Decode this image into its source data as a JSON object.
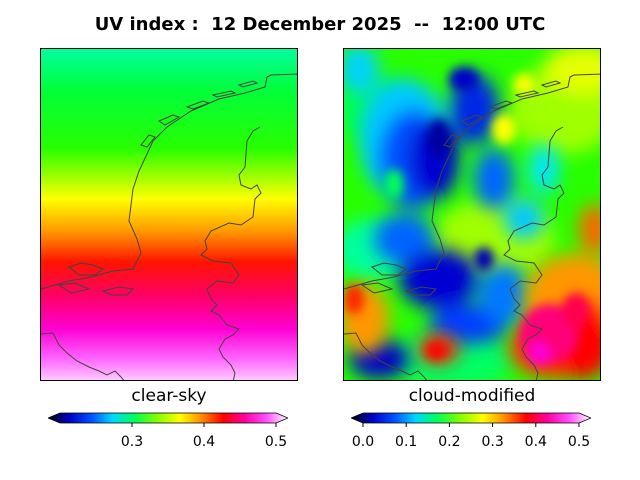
{
  "title": "UV index :  12 December 2025  --  12:00 UTC",
  "panels": {
    "left": {
      "label": "clear-sky",
      "colorbar": {
        "ticks": [
          "0.3",
          "0.4",
          "0.5"
        ],
        "tick_values": [
          0.3,
          0.4,
          0.5
        ],
        "range": [
          0.2,
          0.5
        ]
      }
    },
    "right": {
      "label": "cloud-modified",
      "colorbar": {
        "ticks": [
          "0.0",
          "0.1",
          "0.2",
          "0.3",
          "0.4",
          "0.5"
        ],
        "tick_values": [
          0.0,
          0.1,
          0.2,
          0.3,
          0.4,
          0.5
        ],
        "range": [
          0.0,
          0.5
        ]
      }
    }
  },
  "colormap": [
    "#000000",
    "#0000c8",
    "#0050ff",
    "#00d7ff",
    "#00ff5a",
    "#7dff00",
    "#ffff00",
    "#ff8c00",
    "#ff0000",
    "#ff00a0",
    "#ff50ff",
    "#ffffff"
  ],
  "coastline_color": "#444444"
}
